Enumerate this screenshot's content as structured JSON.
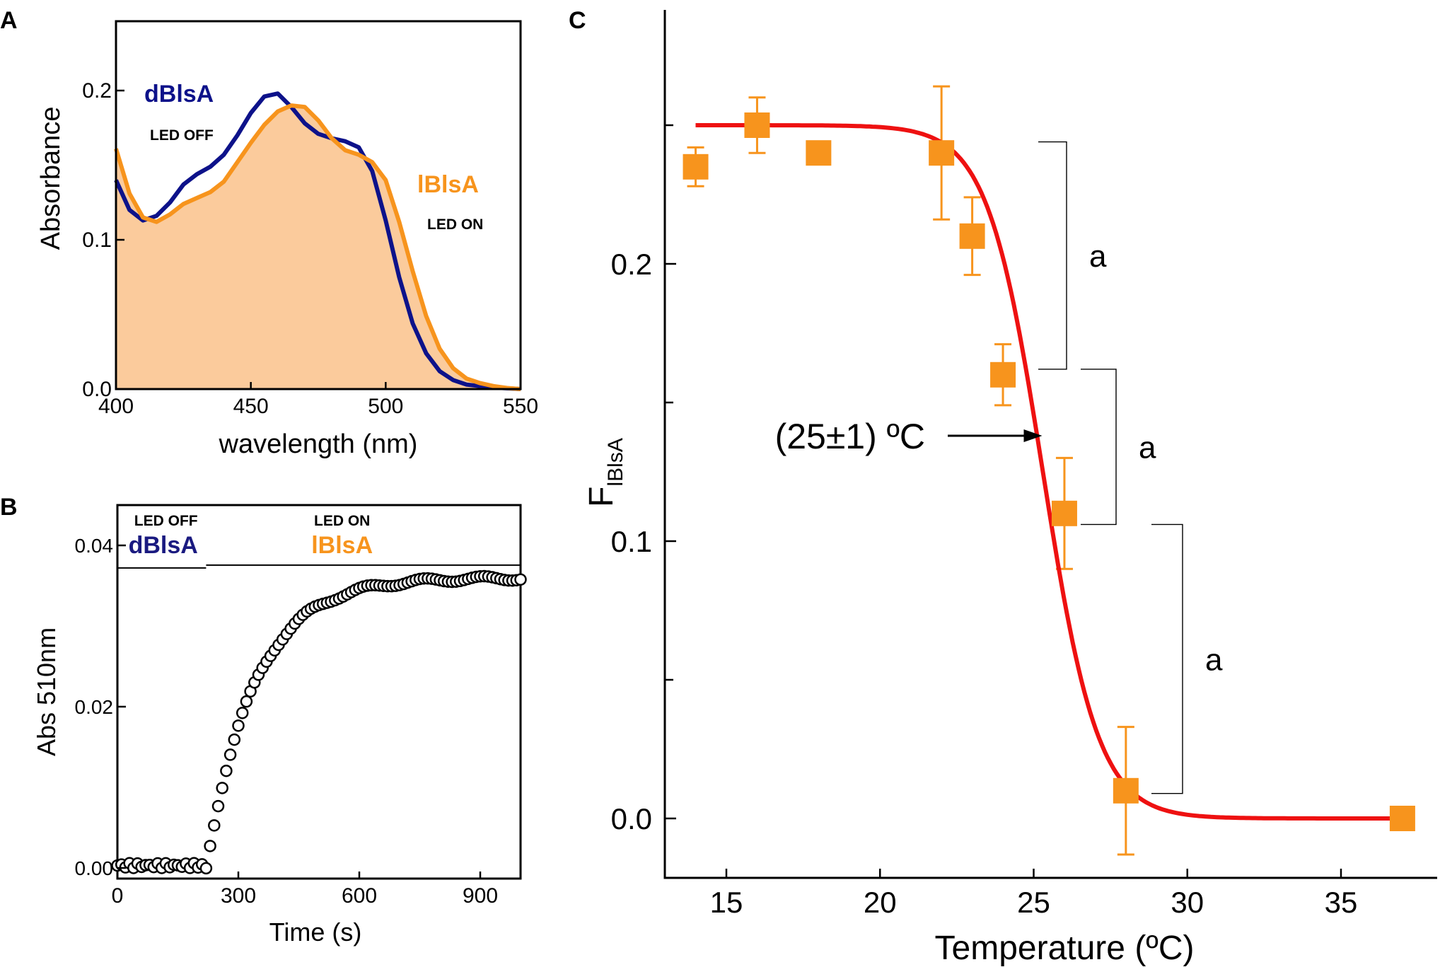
{
  "colors": {
    "dblsa": "#1a1a80",
    "dblsa_panelA": "#0d128a",
    "dblsa_fill_edge": "#5b2b55",
    "lblsa": "#f7941d",
    "lblsa_fill": "#fbcb9c",
    "fit": "#ee1111",
    "marker": "#f7941d"
  },
  "chart_data": [
    {
      "panel_label": "A",
      "type": "line",
      "xlabel": "wavelength (nm)",
      "ylabel": "Absorbance",
      "xlim": [
        400,
        550
      ],
      "ylim": [
        0,
        0.25
      ],
      "xticks": [
        400,
        450,
        500,
        550
      ],
      "yticks": [
        0.0,
        0.1,
        0.2
      ],
      "xtick_labels": [
        "400",
        "450",
        "500",
        "550"
      ],
      "ytick_labels": [
        "0.0",
        "0.1",
        "0.2"
      ],
      "series": [
        {
          "name": "dBlsA",
          "annotation": "LED OFF",
          "x": [
            400,
            405,
            410,
            415,
            420,
            425,
            430,
            435,
            440,
            445,
            450,
            455,
            460,
            465,
            470,
            475,
            480,
            485,
            490,
            495,
            500,
            505,
            510,
            515,
            520,
            525,
            530,
            535,
            540,
            545,
            550
          ],
          "y": [
            0.14,
            0.12,
            0.113,
            0.116,
            0.125,
            0.137,
            0.144,
            0.149,
            0.157,
            0.17,
            0.185,
            0.196,
            0.198,
            0.189,
            0.178,
            0.171,
            0.168,
            0.166,
            0.162,
            0.146,
            0.113,
            0.075,
            0.044,
            0.024,
            0.012,
            0.006,
            0.003,
            0.002,
            0.001,
            0.0005,
            0.0
          ]
        },
        {
          "name": "lBlsA",
          "annotation": "LED ON",
          "x": [
            400,
            405,
            410,
            415,
            420,
            425,
            430,
            435,
            440,
            445,
            450,
            455,
            460,
            465,
            470,
            475,
            480,
            485,
            490,
            495,
            500,
            505,
            510,
            515,
            520,
            525,
            530,
            535,
            540,
            545,
            550
          ],
          "y": [
            0.161,
            0.131,
            0.115,
            0.112,
            0.117,
            0.124,
            0.128,
            0.132,
            0.139,
            0.152,
            0.165,
            0.177,
            0.186,
            0.19,
            0.189,
            0.18,
            0.168,
            0.16,
            0.157,
            0.152,
            0.14,
            0.112,
            0.079,
            0.049,
            0.027,
            0.014,
            0.007,
            0.004,
            0.002,
            0.0007,
            0.0
          ]
        }
      ]
    },
    {
      "panel_label": "B",
      "type": "scatter",
      "xlabel": "Time (s)",
      "ylabel": "Abs 510nm",
      "xlim": [
        0,
        1000
      ],
      "ylim": [
        0,
        0.045
      ],
      "xticks": [
        0,
        300,
        600,
        900
      ],
      "yticks": [
        0.0,
        0.02,
        0.04
      ],
      "xtick_labels": [
        "0",
        "300",
        "600",
        "900"
      ],
      "ytick_labels": [
        "0.00",
        "0.02",
        "0.04"
      ],
      "phases": [
        {
          "label": "LED OFF",
          "state": "dBlsA",
          "x_range": [
            0,
            220
          ]
        },
        {
          "label": "LED ON",
          "state": "lBlsA",
          "x_range": [
            220,
            1000
          ]
        }
      ],
      "kinetics": {
        "t_on": 220,
        "amplitude": 0.036,
        "tau": 120,
        "dt": 10,
        "baseline": 0.0003
      }
    },
    {
      "panel_label": "C",
      "type": "scatter",
      "xlabel": "Temperature (ºC)",
      "ylabel": "F",
      "ylabel_subscript": "lBlsA",
      "xlim": [
        12.8,
        39.0
      ],
      "ylim": [
        -0.02,
        0.285
      ],
      "xticks": [
        15,
        20,
        25,
        30,
        35
      ],
      "xtick_labels": [
        "15",
        "20",
        "25",
        "30",
        "35"
      ],
      "yticks_labeled": [
        0.0,
        0.1,
        0.2
      ],
      "ytick_labels": [
        "0.0",
        "0.1",
        "0.2"
      ],
      "yticks_minor": [
        0.05,
        0.15,
        0.25
      ],
      "points": {
        "x": [
          14,
          16,
          18,
          22,
          23,
          24,
          26,
          28,
          37
        ],
        "y": [
          0.235,
          0.25,
          0.24,
          0.24,
          0.21,
          0.16,
          0.11,
          0.01,
          0.0
        ],
        "err": [
          0.007,
          0.01,
          0.003,
          0.024,
          0.014,
          0.011,
          0.02,
          0.023,
          0.0
        ]
      },
      "fit": {
        "type": "sigmoid",
        "top": 0.25,
        "bottom": 0.0,
        "midpoint": 25.3,
        "slope": 0.9
      },
      "midpoint_annotation": {
        "text": "(25±1) ºC",
        "x": 25.0,
        "y": 0.138
      },
      "significance_brackets": [
        {
          "label": "a",
          "y_top": 0.244,
          "y_bottom": 0.162
        },
        {
          "label": "a",
          "y_top": 0.162,
          "y_bottom": 0.106
        },
        {
          "label": "a",
          "y_top": 0.106,
          "y_bottom": 0.009
        }
      ]
    }
  ]
}
